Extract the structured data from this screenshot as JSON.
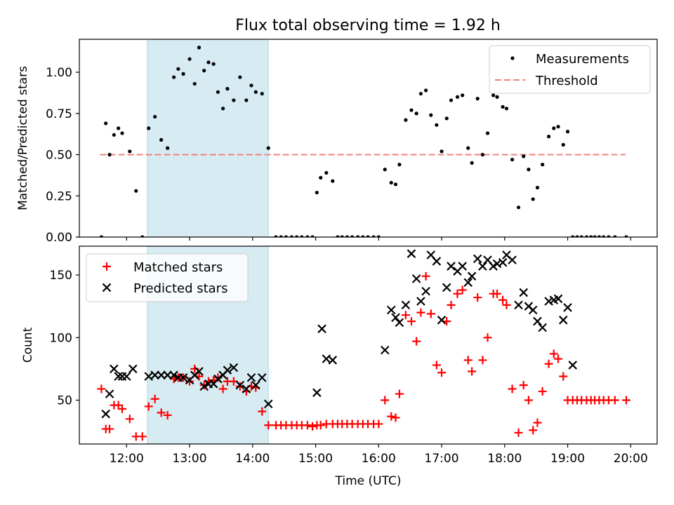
{
  "title": "Flux total observing time = 1.92 h",
  "colors": {
    "measurement": "#000000",
    "threshold": "#f08080",
    "matched": "#ff0000",
    "predicted": "#000000",
    "shade": "#add8e6"
  },
  "chart_data": [
    {
      "type": "scatter",
      "ylabel": "Matched/Predicted stars",
      "xlim": [
        11.25,
        20.42
      ],
      "ylim": [
        0,
        1.2
      ],
      "xticks": [
        "12:00",
        "13:00",
        "14:00",
        "15:00",
        "16:00",
        "17:00",
        "18:00",
        "19:00",
        "20:00"
      ],
      "yticks": [
        "0.00",
        "0.25",
        "0.50",
        "0.75",
        "1.00"
      ],
      "legend": {
        "position": "top-right",
        "entries": [
          "Measurements",
          "Threshold"
        ]
      },
      "shaded_region": [
        12.33,
        14.25
      ],
      "threshold": {
        "y": 0.5,
        "x": [
          11.58,
          19.92
        ]
      },
      "series": [
        {
          "name": "Measurements",
          "x": [
            11.6,
            11.67,
            11.73,
            11.8,
            11.87,
            11.93,
            12.05,
            12.15,
            12.25,
            12.35,
            12.45,
            12.55,
            12.65,
            12.75,
            12.82,
            12.9,
            13.0,
            13.08,
            13.15,
            13.23,
            13.3,
            13.38,
            13.45,
            13.53,
            13.6,
            13.7,
            13.8,
            13.9,
            13.98,
            14.05,
            14.15,
            14.25,
            14.37,
            14.45,
            14.53,
            14.62,
            14.7,
            14.78,
            14.87,
            14.95,
            15.02,
            15.08,
            15.17,
            15.27,
            15.35,
            15.42,
            15.5,
            15.58,
            15.67,
            15.75,
            15.83,
            15.92,
            16.0,
            16.1,
            16.2,
            16.27,
            16.33,
            16.43,
            16.52,
            16.6,
            16.67,
            16.75,
            16.83,
            16.92,
            17.0,
            17.08,
            17.15,
            17.25,
            17.33,
            17.42,
            17.48,
            17.57,
            17.65,
            17.73,
            17.82,
            17.88,
            17.97,
            18.03,
            18.12,
            18.22,
            18.3,
            18.38,
            18.45,
            18.52,
            18.6,
            18.7,
            18.78,
            18.85,
            18.93,
            19.0,
            19.08,
            19.15,
            19.22,
            19.3,
            19.37,
            19.43,
            19.5,
            19.57,
            19.65,
            19.75,
            19.93
          ],
          "y": [
            0.0,
            0.69,
            0.5,
            0.62,
            0.66,
            0.63,
            0.52,
            0.28,
            0.0,
            0.66,
            0.73,
            0.59,
            0.54,
            0.97,
            1.02,
            0.99,
            1.08,
            0.93,
            1.15,
            1.01,
            1.06,
            1.05,
            0.88,
            0.78,
            0.9,
            0.83,
            0.97,
            0.83,
            0.92,
            0.88,
            0.87,
            0.54,
            0.0,
            0.0,
            0.0,
            0.0,
            0.0,
            0.0,
            0.0,
            0.0,
            0.27,
            0.36,
            0.39,
            0.34,
            0.0,
            0.0,
            0.0,
            0.0,
            0.0,
            0.0,
            0.0,
            0.0,
            0.0,
            0.41,
            0.33,
            0.32,
            0.44,
            0.71,
            0.77,
            0.75,
            0.87,
            0.89,
            0.74,
            0.68,
            0.52,
            0.72,
            0.83,
            0.85,
            0.86,
            0.54,
            0.45,
            0.84,
            0.5,
            0.63,
            0.86,
            0.85,
            0.79,
            0.78,
            0.47,
            0.18,
            0.49,
            0.41,
            0.23,
            0.3,
            0.44,
            0.61,
            0.66,
            0.67,
            0.56,
            0.64,
            0.0,
            0.0,
            0.0,
            0.0,
            0.0,
            0.0,
            0.0,
            0.0,
            0.0,
            0.0,
            0.0
          ]
        }
      ]
    },
    {
      "type": "scatter",
      "xlabel": "Time (UTC)",
      "ylabel": "Count",
      "xlim": [
        11.25,
        20.42
      ],
      "ylim": [
        15,
        173
      ],
      "xticks": [
        "12:00",
        "13:00",
        "14:00",
        "15:00",
        "16:00",
        "17:00",
        "18:00",
        "19:00",
        "20:00"
      ],
      "yticks": [
        "50",
        "100",
        "150"
      ],
      "legend": {
        "position": "top-left",
        "entries": [
          "Matched stars",
          "Predicted stars"
        ]
      },
      "shaded_region": [
        12.33,
        14.25
      ],
      "series": [
        {
          "name": "Matched stars",
          "marker": "+",
          "x": [
            11.6,
            11.67,
            11.73,
            11.8,
            11.87,
            11.93,
            12.05,
            12.15,
            12.25,
            12.35,
            12.45,
            12.55,
            12.65,
            12.75,
            12.82,
            12.9,
            13.0,
            13.08,
            13.15,
            13.23,
            13.3,
            13.38,
            13.45,
            13.53,
            13.6,
            13.7,
            13.8,
            13.9,
            13.98,
            14.05,
            14.15,
            14.25,
            14.37,
            14.45,
            14.53,
            14.62,
            14.7,
            14.78,
            14.87,
            14.95,
            15.02,
            15.08,
            15.17,
            15.27,
            15.35,
            15.42,
            15.5,
            15.58,
            15.67,
            15.75,
            15.83,
            15.92,
            16.0,
            16.1,
            16.2,
            16.27,
            16.33,
            16.43,
            16.52,
            16.6,
            16.67,
            16.75,
            16.83,
            16.92,
            17.0,
            17.08,
            17.15,
            17.25,
            17.33,
            17.42,
            17.48,
            17.57,
            17.65,
            17.73,
            17.82,
            17.88,
            17.97,
            18.03,
            18.12,
            18.22,
            18.3,
            18.38,
            18.45,
            18.52,
            18.6,
            18.7,
            18.78,
            18.85,
            18.93,
            19.0,
            19.08,
            19.15,
            19.22,
            19.3,
            19.37,
            19.43,
            19.5,
            19.57,
            19.65,
            19.75,
            19.93
          ],
          "y": [
            59,
            27,
            27,
            46,
            46,
            43,
            35,
            21,
            21,
            45,
            51,
            40,
            38,
            67,
            68,
            68,
            65,
            75,
            69,
            62,
            65,
            66,
            68,
            59,
            65,
            65,
            61,
            57,
            61,
            60,
            41,
            30,
            30,
            30,
            30,
            30,
            30,
            30,
            30,
            29,
            30,
            30,
            31,
            31,
            31,
            31,
            31,
            31,
            31,
            31,
            31,
            31,
            31,
            50,
            37,
            36,
            55,
            118,
            113,
            97,
            120,
            149,
            119,
            78,
            72,
            113,
            126,
            135,
            138,
            82,
            73,
            132,
            82,
            100,
            135,
            135,
            130,
            126,
            59,
            24,
            62,
            50,
            26,
            32,
            57,
            79,
            87,
            83,
            69,
            50,
            50,
            50,
            50,
            50,
            50,
            50,
            50,
            50,
            50,
            50,
            50
          ]
        },
        {
          "name": "Predicted stars",
          "marker": "x",
          "x": [
            11.67,
            11.73,
            11.8,
            11.87,
            11.93,
            12.0,
            12.1,
            12.35,
            12.45,
            12.55,
            12.65,
            12.75,
            12.82,
            12.9,
            13.0,
            13.08,
            13.15,
            13.23,
            13.3,
            13.38,
            13.45,
            13.53,
            13.6,
            13.7,
            13.8,
            13.9,
            13.98,
            14.05,
            14.15,
            14.25,
            15.02,
            15.1,
            15.17,
            15.27,
            16.1,
            16.2,
            16.27,
            16.33,
            16.43,
            16.52,
            16.6,
            16.67,
            16.75,
            16.83,
            16.92,
            17.0,
            17.08,
            17.15,
            17.25,
            17.33,
            17.42,
            17.48,
            17.57,
            17.65,
            17.73,
            17.82,
            17.88,
            17.97,
            18.03,
            18.12,
            18.22,
            18.3,
            18.38,
            18.45,
            18.52,
            18.6,
            18.7,
            18.78,
            18.85,
            18.93,
            19.0,
            19.08
          ],
          "y": [
            39,
            55,
            75,
            69,
            69,
            69,
            75,
            69,
            70,
            70,
            70,
            70,
            68,
            68,
            66,
            70,
            73,
            61,
            63,
            63,
            67,
            70,
            74,
            76,
            62,
            59,
            68,
            62,
            68,
            47,
            56,
            107,
            83,
            82,
            90,
            122,
            116,
            112,
            126,
            167,
            147,
            129,
            137,
            166,
            161,
            114,
            140,
            157,
            153,
            157,
            144,
            149,
            163,
            157,
            162,
            157,
            159,
            160,
            166,
            162,
            126,
            136,
            125,
            122,
            113,
            108,
            129,
            130,
            131,
            114,
            124,
            78
          ]
        }
      ]
    }
  ]
}
